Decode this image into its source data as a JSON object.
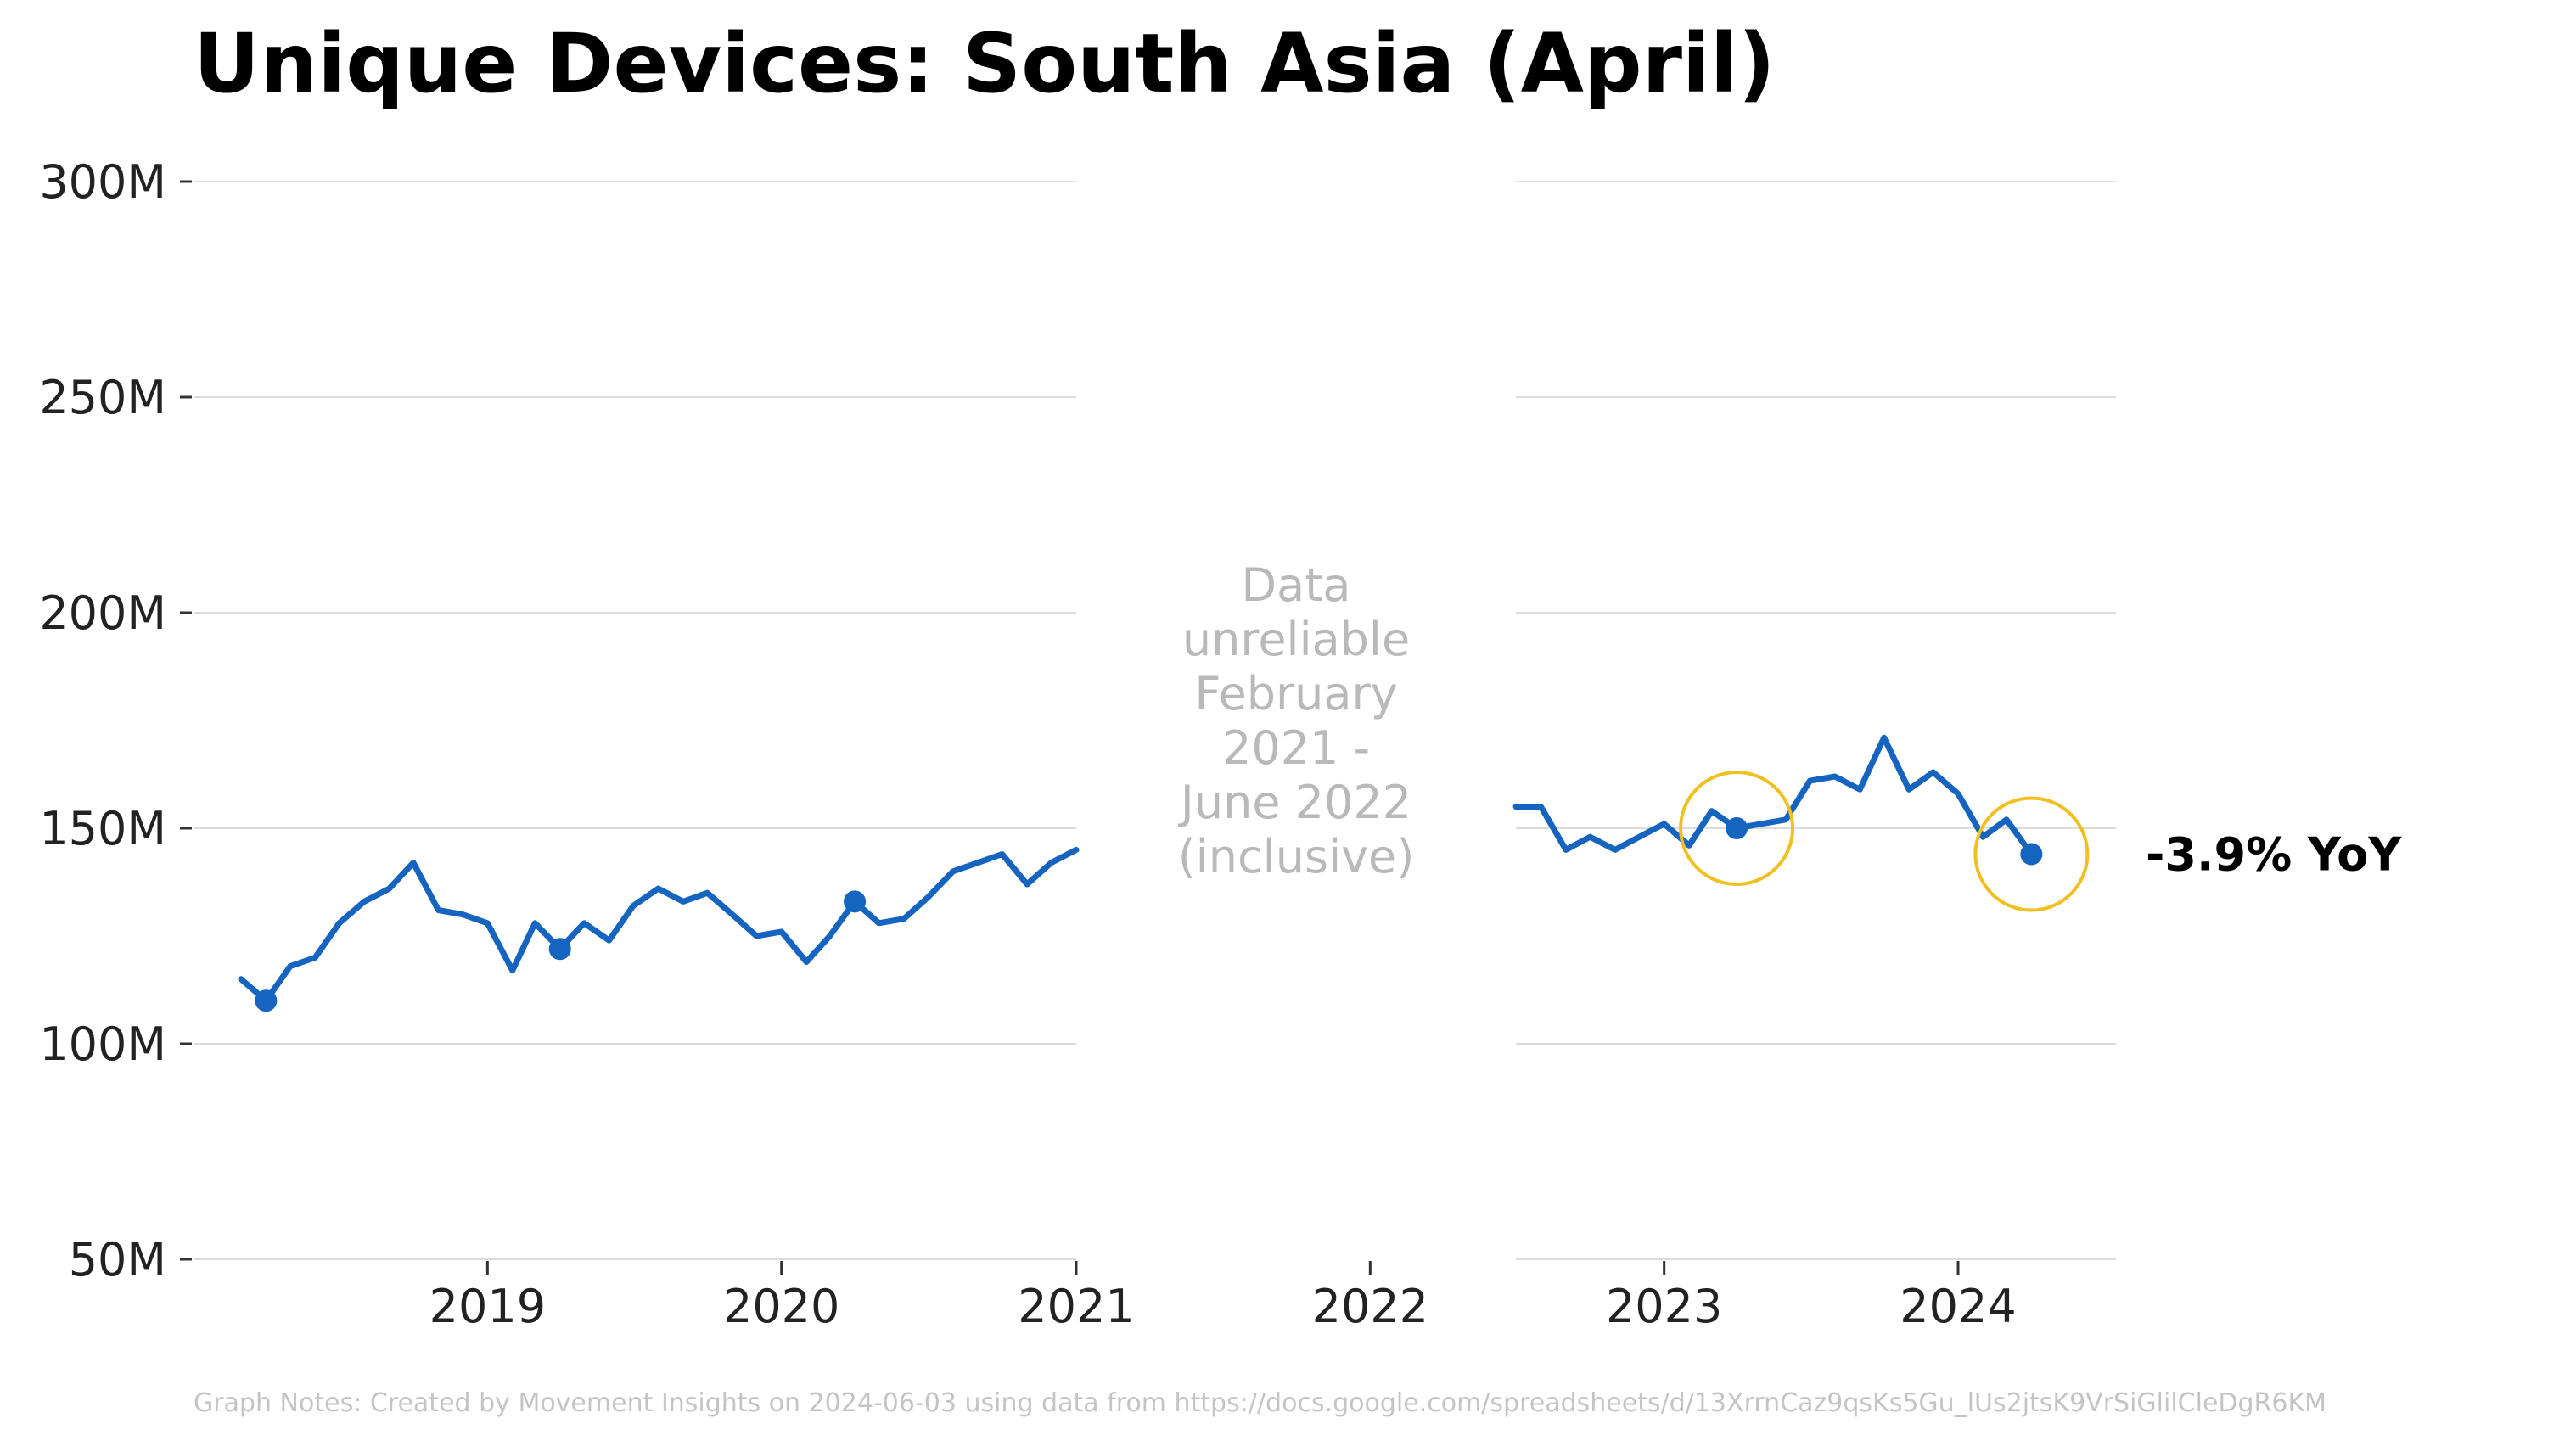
{
  "chart_data": {
    "type": "line",
    "title": "Unique Devices: South Asia (April)",
    "xlabel": "",
    "ylabel": "",
    "ylim": [
      50000000,
      300000000
    ],
    "xlim": [
      "2018-01-01",
      "2024-07-15"
    ],
    "y_ticks": [
      {
        "value": 50000000,
        "label": "50M"
      },
      {
        "value": 100000000,
        "label": "100M"
      },
      {
        "value": 150000000,
        "label": "150M"
      },
      {
        "value": 200000000,
        "label": "200M"
      },
      {
        "value": 250000000,
        "label": "250M"
      },
      {
        "value": 300000000,
        "label": "300M"
      }
    ],
    "x_ticks": [
      {
        "value": "2019-01-01",
        "label": "2019"
      },
      {
        "value": "2020-01-01",
        "label": "2020"
      },
      {
        "value": "2021-01-01",
        "label": "2021"
      },
      {
        "value": "2022-01-01",
        "label": "2022"
      },
      {
        "value": "2023-01-01",
        "label": "2023"
      },
      {
        "value": "2024-01-01",
        "label": "2024"
      }
    ],
    "grid": "horizontal",
    "line_color": "#1565c0",
    "highlight_color": "#f0c020",
    "gap": {
      "start": "2021-01-01",
      "end": "2022-07-01",
      "label_lines": [
        "Data",
        "unreliable",
        "February",
        "2021 -",
        "June 2022",
        "(inclusive)"
      ]
    },
    "series": [
      {
        "x": [
          "2018-03-01",
          "2018-04-01",
          "2018-05-01",
          "2018-06-01",
          "2018-07-01",
          "2018-08-01",
          "2018-09-01",
          "2018-10-01",
          "2018-11-01",
          "2018-12-01",
          "2019-01-01",
          "2019-02-01",
          "2019-03-01",
          "2019-04-01",
          "2019-05-01",
          "2019-06-01",
          "2019-07-01",
          "2019-08-01",
          "2019-09-01",
          "2019-10-01",
          "2019-11-01",
          "2019-12-01",
          "2020-01-01",
          "2020-02-01",
          "2020-03-01",
          "2020-04-01",
          "2020-05-01",
          "2020-06-01",
          "2020-07-01",
          "2020-08-01",
          "2020-09-01",
          "2020-10-01",
          "2020-11-01",
          "2020-12-01",
          "2021-01-01"
        ],
        "y": [
          115000000,
          110000000,
          118000000,
          120000000,
          128000000,
          133000000,
          136000000,
          142000000,
          131000000,
          130000000,
          128000000,
          117000000,
          128000000,
          122000000,
          128000000,
          124000000,
          132000000,
          136000000,
          133000000,
          135000000,
          130000000,
          125000000,
          126000000,
          119000000,
          125000000,
          133000000,
          128000000,
          129000000,
          134000000,
          140000000,
          142000000,
          144000000,
          137000000,
          142000000,
          145000000
        ]
      },
      {
        "x": [
          "2022-07-01",
          "2022-08-01",
          "2022-09-01",
          "2022-10-01",
          "2022-11-01",
          "2022-12-01",
          "2023-01-01",
          "2023-02-01",
          "2023-03-01",
          "2023-04-01",
          "2023-05-01",
          "2023-06-01",
          "2023-07-01",
          "2023-08-01",
          "2023-09-01",
          "2023-10-01",
          "2023-11-01",
          "2023-12-01",
          "2024-01-01",
          "2024-02-01",
          "2024-03-01",
          "2024-04-01"
        ],
        "y": [
          155000000,
          155000000,
          145000000,
          148000000,
          145000000,
          148000000,
          151000000,
          146000000,
          154000000,
          150000000,
          151000000,
          152000000,
          161000000,
          162000000,
          159000000,
          171000000,
          159000000,
          163000000,
          158000000,
          148000000,
          152000000,
          144000000
        ]
      }
    ],
    "april_points": [
      {
        "x": "2018-04-01",
        "y": 110000000
      },
      {
        "x": "2019-04-01",
        "y": 122000000
      },
      {
        "x": "2020-04-01",
        "y": 133000000
      },
      {
        "x": "2023-04-01",
        "y": 150000000
      },
      {
        "x": "2024-04-01",
        "y": 144000000
      }
    ],
    "highlighted": [
      "2023-04-01",
      "2024-04-01"
    ],
    "annotation": "-3.9% YoY",
    "note": "Graph Notes: Created by Movement Insights on 2024-06-03 using data from https://docs.google.com/spreadsheets/d/13XrrnCaz9qsKs5Gu_lUs2jtsK9VrSiGlilCleDgR6KM"
  }
}
